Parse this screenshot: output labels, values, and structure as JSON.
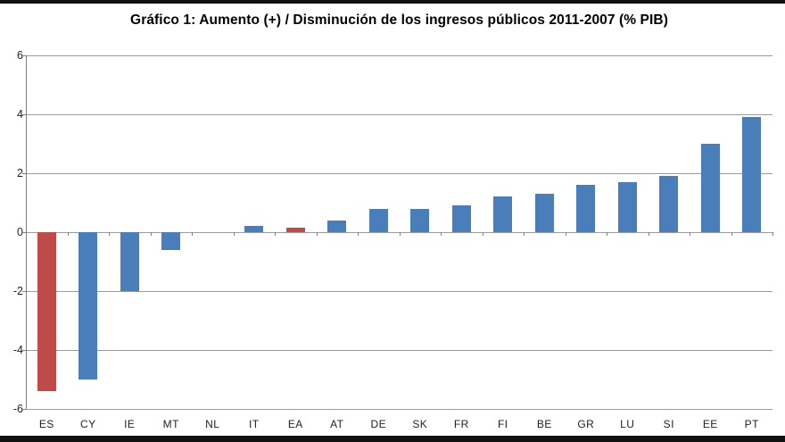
{
  "chart_data": {
    "type": "bar",
    "title": "Gráfico 1: Aumento (+) / Disminución de los ingresos públicos 2011-2007 (% PIB)",
    "categories": [
      "ES",
      "CY",
      "IE",
      "MT",
      "NL",
      "IT",
      "EA",
      "AT",
      "DE",
      "SK",
      "FR",
      "FI",
      "BE",
      "GR",
      "LU",
      "SI",
      "EE",
      "PT"
    ],
    "values": [
      -5.4,
      -5.0,
      -2.0,
      -0.6,
      0,
      0.2,
      0.15,
      0.4,
      0.8,
      0.8,
      0.9,
      1.2,
      1.3,
      1.6,
      1.7,
      1.9,
      3.0,
      3.9
    ],
    "bar_colors": [
      "#BE4B48",
      "#4A7EBB",
      "#4A7EBB",
      "#4A7EBB",
      "#4A7EBB",
      "#4A7EBB",
      "#BE4B48",
      "#4A7EBB",
      "#4A7EBB",
      "#4A7EBB",
      "#4A7EBB",
      "#4A7EBB",
      "#4A7EBB",
      "#4A7EBB",
      "#4A7EBB",
      "#4A7EBB",
      "#4A7EBB",
      "#4A7EBB"
    ],
    "xlabel": "",
    "ylabel": "",
    "ylim": [
      -6,
      6
    ],
    "yticks": [
      6,
      4,
      2,
      0,
      -2,
      -4,
      -6
    ],
    "grid": true,
    "legend": false
  },
  "colors": {
    "positive_bar": "#4A7EBB",
    "highlight_bar": "#BE4B48",
    "gridline": "#9b9b9b",
    "axis": "#7f7f7f",
    "tick_text": "#1f1f1f",
    "letterbox": "#111111"
  }
}
